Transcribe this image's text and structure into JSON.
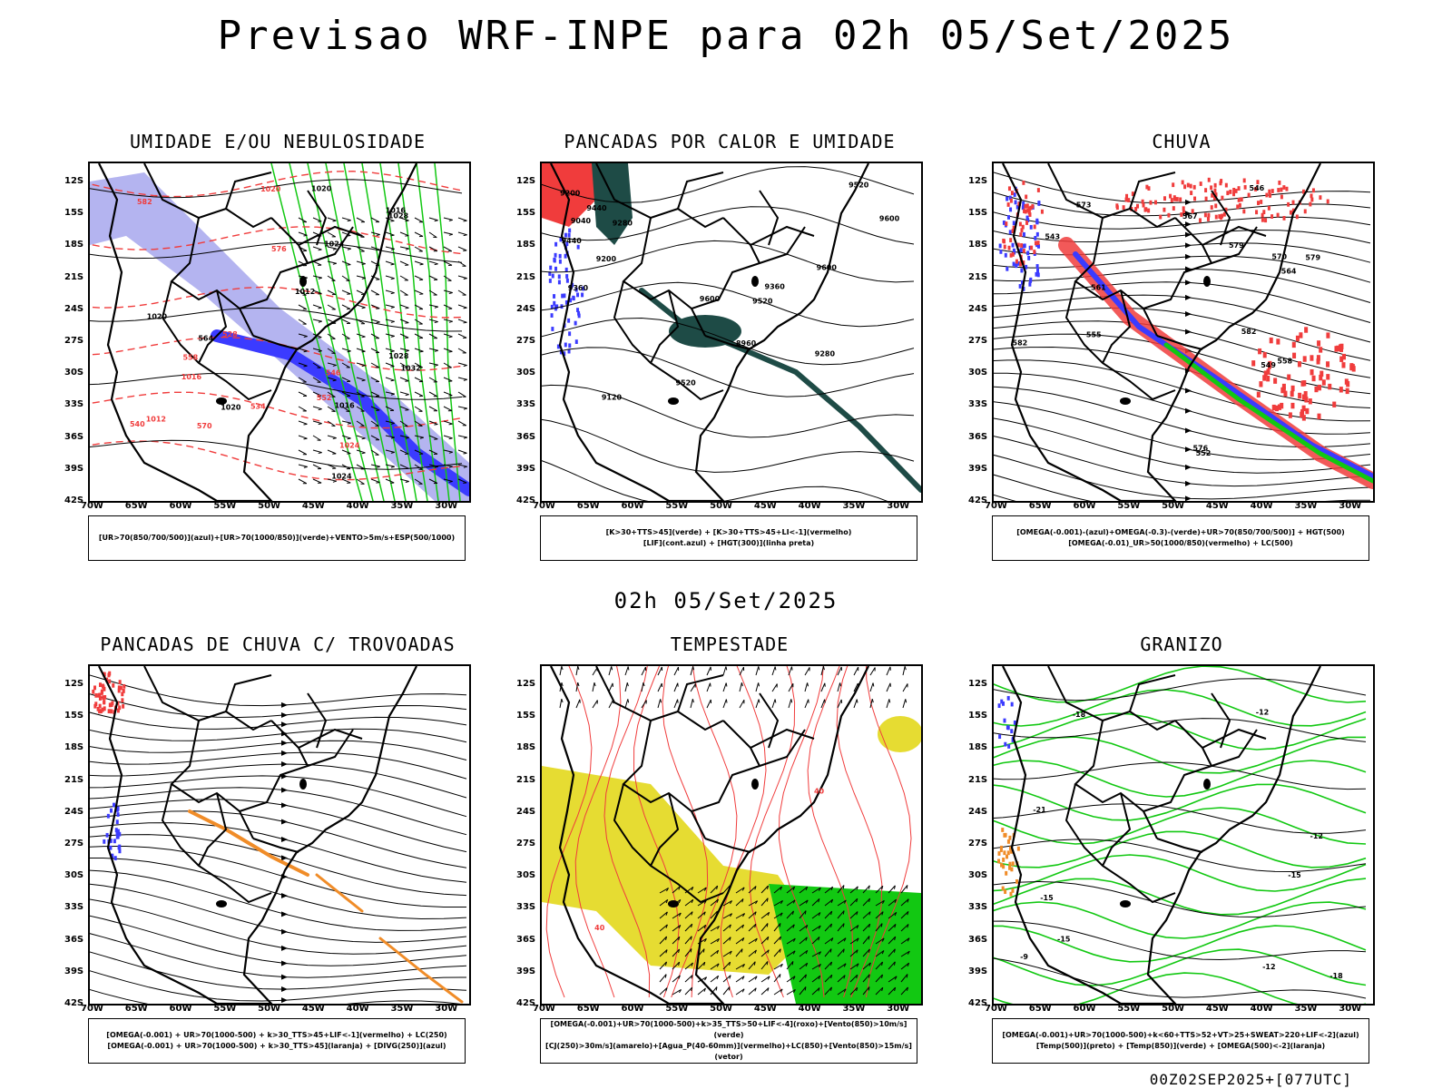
{
  "header": {
    "title": "Previsao WRF-INPE  para 02h 05/Set/2025"
  },
  "middle_title": "02h 05/Set/2025",
  "footer": "00Z02SEP2025+[077UTC]",
  "axes": {
    "y_labels": [
      "12S",
      "15S",
      "18S",
      "21S",
      "24S",
      "27S",
      "30S",
      "33S",
      "36S",
      "39S",
      "42S"
    ],
    "x_labels": [
      "70W",
      "65W",
      "60W",
      "55W",
      "50W",
      "45W",
      "40W",
      "35W",
      "30W"
    ]
  },
  "colors": {
    "blue": "#3b3bff",
    "lightblue": "#b4b4f0",
    "green": "#12c812",
    "red": "#f03c3c",
    "darkgreen": "#1e4b46",
    "yellow": "#e6dc32",
    "orange": "#f08c28",
    "black": "#000000"
  },
  "panels": [
    {
      "title": "UMIDADE E/OU NEBULOSIDADE",
      "legend": [
        "[UR>70(850/700/500)](azul)+[UR>70(1000/850)](verde)+VENTO>5m/s+ESP(500/1000)"
      ],
      "labels": [
        "1012",
        "1016",
        "1020",
        "1020",
        "1016",
        "1020",
        "1024",
        "1028",
        "1032",
        "1028",
        "1024",
        "564",
        "570",
        "576",
        "582",
        "558",
        "552",
        "546",
        "540",
        "534",
        "528",
        "1012",
        "1016",
        "1020",
        "1024"
      ]
    },
    {
      "title": "PANCADAS POR CALOR E UMIDADE",
      "legend": [
        "[K>30+TTS>45](verde) + [K>30+TTS>45+LI<-1](vermelho)",
        "[LIF](cont.azul) + [HGT(300)](linha preta)"
      ],
      "labels": [
        "9600",
        "9600",
        "9600",
        "9520",
        "9520",
        "9520",
        "9440",
        "9440",
        "9360",
        "9280",
        "9200",
        "9120",
        "9040",
        "8960",
        "9200",
        "9280",
        "9360"
      ]
    },
    {
      "title": "CHUVA",
      "legend": [
        "[OMEGA(-0.001)-(azul)+OMEGA(-0.3)-(verde)+UR>70(850/700/500)] + HGT(500)",
        "[OMEGA(-0.01)_UR>50(1000/850)(vermelho) + LC(500)"
      ],
      "labels": [
        "582",
        "579",
        "576",
        "573",
        "570",
        "567",
        "564",
        "561",
        "558",
        "555",
        "552",
        "549",
        "546",
        "543",
        "582",
        "579"
      ]
    },
    {
      "title": "PANCADAS DE CHUVA C/ TROVOADAS",
      "legend": [
        "[OMEGA(-0.001) + UR>70(1000-500) + k>30_TTS>45+LIF<-1](vermelho) + LC(250)",
        "[OMEGA(-0.001) + UR>70(1000-500) + k>30_TTS>45](laranja) + [DIVG(250)](azul)"
      ],
      "labels": []
    },
    {
      "title": "TEMPESTADE",
      "legend": [
        "[OMEGA(-0.001)+UR>70(1000-500)+k>35_TTS>50+LIF<-4](roxo)+[Vento(850)>10m/s](verde)",
        "[CJ(250)>30m/s](amarelo)+[Agua_P(40-60mm)](vermelho)+LC(850)+[Vento(850)>15m/s](vetor)"
      ],
      "labels": [
        "40",
        "40"
      ]
    },
    {
      "title": "GRANIZO",
      "legend": [
        "[OMEGA(-0.001)+UR>70(1000-500)+k<60+TTS>52+VT>25+SWEAT>220+LIF<-2](azul)",
        "[Temp(500)](preto) + [Temp(850)](verde) + [OMEGA(500)<-2](laranja)"
      ],
      "labels": [
        "-9",
        "-12",
        "-12",
        "-15",
        "-18",
        "-15",
        "-12",
        "-21",
        "-18",
        "-15"
      ]
    }
  ]
}
